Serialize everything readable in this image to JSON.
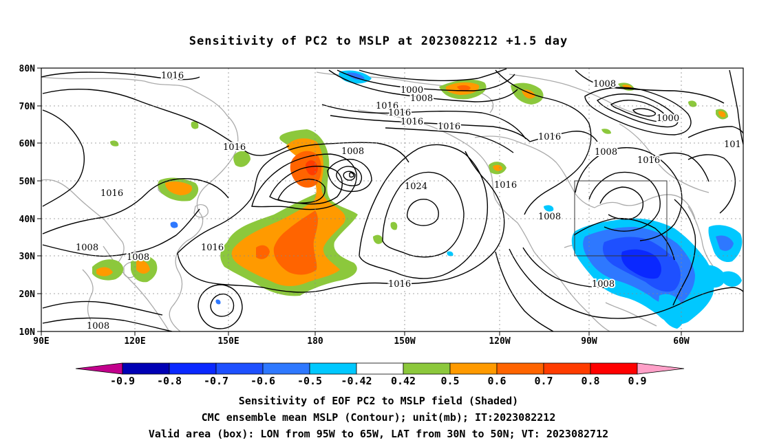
{
  "title": "Sensitivity of PC2 to MSLP at 2023082212 +1.5 day",
  "lat_labels": [
    "80N",
    "70N",
    "60N",
    "50N",
    "40N",
    "30N",
    "20N",
    "10N"
  ],
  "lon_labels": [
    "90E",
    "120E",
    "150E",
    "180",
    "150W",
    "120W",
    "90W",
    "60W"
  ],
  "contour_labels": {
    "l1016_nw": "1016",
    "l1000_n": "1000",
    "l1008_n": "1008",
    "l1016_n1": "1016",
    "l1016_n2": "1016",
    "l1016_n3": "1016",
    "l1016_n4": "1016",
    "l1008_ne": "1008",
    "l1000_ne": "1000",
    "l1016_ne1": "1016",
    "l101_edge": "101",
    "l1008_ne2": "1008",
    "l1016_ne2": "1016",
    "l1016_w1": "1016",
    "l1008_low": "1008",
    "l1016_mid": "1016",
    "l1024_high": "1024",
    "l1016_na": "1016",
    "l1008_na": "1008",
    "l1016_sub": "1016",
    "l1008_sw1": "1008",
    "l1008_sw2": "1008",
    "l1008_sw3": "1008",
    "l1008_se": "1008"
  },
  "colorbar": {
    "colors": [
      "#c2008c",
      "#0000b4",
      "#0a28ff",
      "#1e50ff",
      "#2e78ff",
      "#00c8ff",
      "#ffffff",
      "#8cc83c",
      "#ff9a00",
      "#ff6400",
      "#ff3c00",
      "#ff0000",
      "#ffa0c8"
    ],
    "labels": [
      "-0.9",
      "-0.8",
      "-0.7",
      "-0.6",
      "-0.5",
      "-0.42",
      "0.42",
      "0.5",
      "0.6",
      "0.7",
      "0.8",
      "0.9"
    ]
  },
  "footer": {
    "line1": "Sensitivity of EOF PC2 to MSLP field (Shaded)",
    "line2": "CMC ensemble mean MSLP (Contour); unit(mb); IT:2023082212",
    "line3": "Valid area (box): LON from 95W to 65W, LAT from 30N to 50N; VT: 2023082712"
  },
  "valid_box": {
    "lon": [
      "95W",
      "65W"
    ],
    "lat": [
      "30N",
      "50N"
    ]
  }
}
